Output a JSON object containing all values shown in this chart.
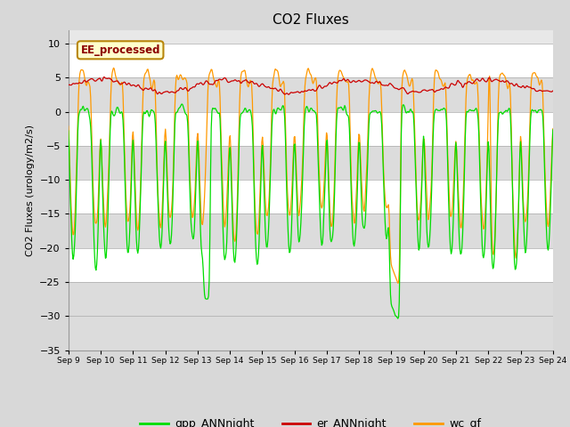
{
  "title": "CO2 Fluxes",
  "ylabel": "CO2 Fluxes (urology/m2/s)",
  "ylim": [
    -35,
    12
  ],
  "yticks": [
    10,
    5,
    0,
    -5,
    -10,
    -15,
    -20,
    -25,
    -30,
    -35
  ],
  "fig_bg": "#d8d8d8",
  "plot_bg": "#e8e8e8",
  "band_colors": [
    "#ffffff",
    "#dcdcdc",
    "#ffffff",
    "#dcdcdc",
    "#ffffff",
    "#dcdcdc",
    "#ffffff",
    "#dcdcdc",
    "#dcdcdc"
  ],
  "band_edges": [
    10,
    5,
    0,
    -5,
    -10,
    -15,
    -20,
    -25,
    -30,
    -35
  ],
  "legend_label": "EE_processed",
  "line_gpp": "#00dd00",
  "line_er": "#cc0000",
  "line_wc": "#ff9900",
  "legend_items": [
    "gpp_ANNnight",
    "er_ANNnight",
    "wc_gf"
  ],
  "legend_colors": [
    "#00dd00",
    "#cc0000",
    "#ff9900"
  ]
}
